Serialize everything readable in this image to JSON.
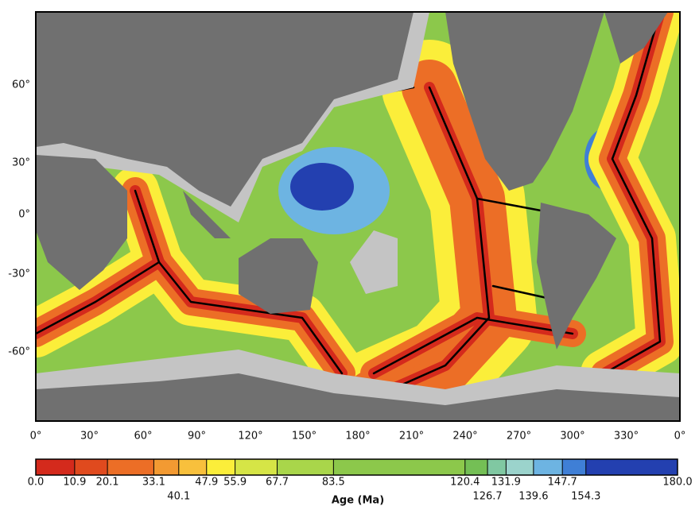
{
  "map": {
    "lat_labels": [
      "60°",
      "30°",
      "0°",
      "-30°",
      "-60°"
    ],
    "lon_labels": [
      "0°",
      "30°",
      "60°",
      "90°",
      "120°",
      "150°",
      "180°",
      "210°",
      "240°",
      "270°",
      "300°",
      "330°",
      "0°"
    ]
  },
  "colorbar": {
    "title": "Age (Ma)",
    "ticks": [
      {
        "value": 0,
        "label": "0.0"
      },
      10.9,
      20.1,
      33.1,
      40.1,
      47.9,
      55.9,
      67.7,
      83.5,
      120.4,
      126.7,
      131.9,
      139.6,
      147.7,
      154.3,
      {
        "value": 180,
        "label": "180.0"
      }
    ],
    "colors": [
      "#d42a1c",
      "#e04a1e",
      "#ec6e26",
      "#f39a32",
      "#f8c03c",
      "#fbee3a",
      "#d6e546",
      "#a9d64a",
      "#8cc84b",
      "#74bf55",
      "#80c8a2",
      "#9bd3cc",
      "#6db4e2",
      "#3f7fd6",
      "#2340b0"
    ]
  }
}
